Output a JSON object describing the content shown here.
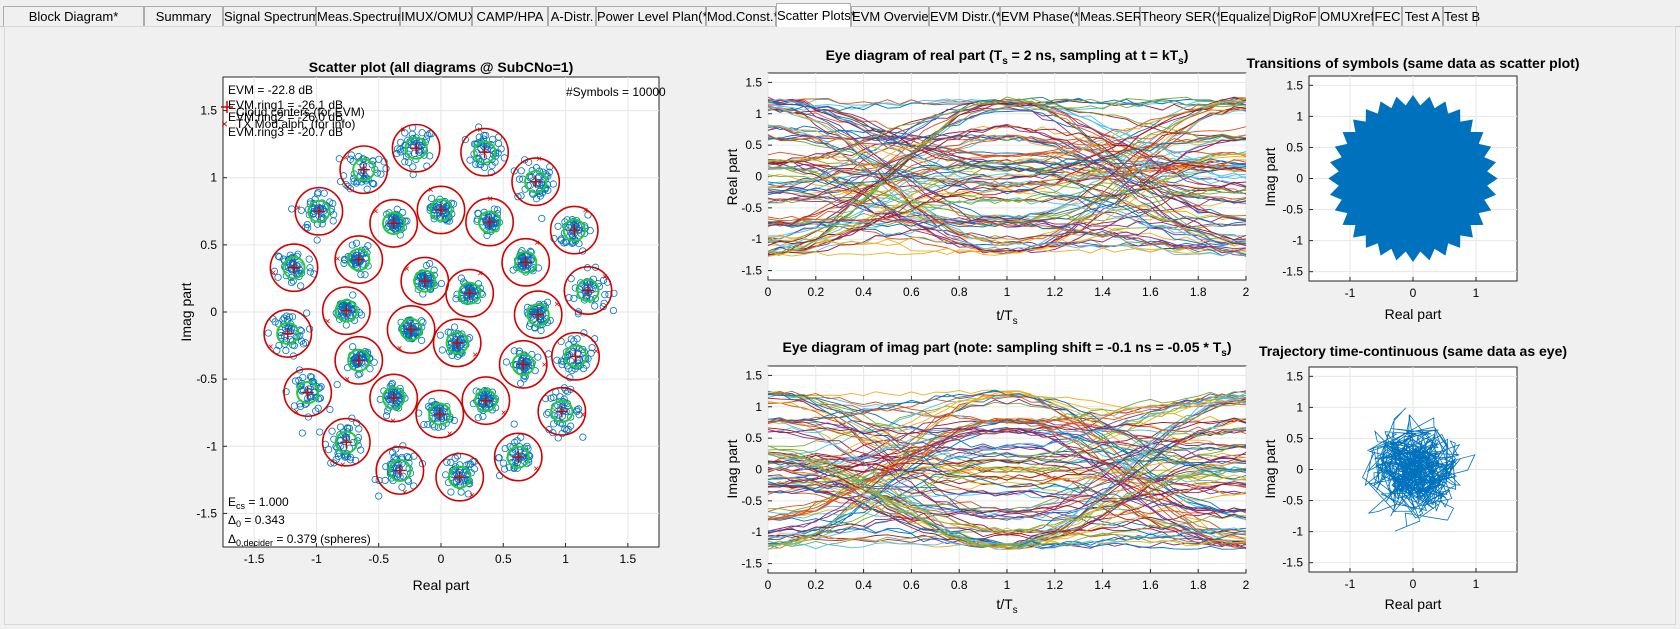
{
  "tabs": [
    {
      "label": "Block Diagram*"
    },
    {
      "label": "Summary"
    },
    {
      "label": "Signal Spectrum"
    },
    {
      "label": "Meas.Spectrum"
    },
    {
      "label": "IMUX/OMUX"
    },
    {
      "label": "CAMP/HPA"
    },
    {
      "label": "A-Distr."
    },
    {
      "label": "Power Level Plan(*)"
    },
    {
      "label": "Mod.Const.*"
    },
    {
      "label": "Scatter Plots*"
    },
    {
      "label": "EVM Overview"
    },
    {
      "label": "EVM Distr.(*)"
    },
    {
      "label": "EVM Phase(*)"
    },
    {
      "label": "Meas.SER*"
    },
    {
      "label": "Theory SER(*)"
    },
    {
      "label": "Equalizer"
    },
    {
      "label": "DigRoF"
    },
    {
      "label": "OMUXrefl"
    },
    {
      "label": "FEC"
    },
    {
      "label": "Test A"
    },
    {
      "label": "Test B"
    }
  ],
  "active_tab": "Scatter Plots*",
  "scatter": {
    "title": "Scatter plot (all diagrams @ SubCNo=1)",
    "xlabel": "Real part",
    "ylabel": "Imag part",
    "evm_lines": [
      "EVM = -22.8 dB",
      "EVM.ring1 = -26.1 dB",
      "EVM.ring2 = -26.0 dB",
      "EVM.ring3 = -20.7 dB"
    ],
    "legend": [
      "Cloud centers (for EVM)",
      "TX Mod.alph. (for info)"
    ],
    "symbols": "#Symbols = 10000",
    "ecs_label": "E",
    "ecs_sub": "cs",
    "ecs_value": " = 1.000",
    "delta0_label": "Δ",
    "delta0_sub": "0",
    "delta0_value": "   = 0.343",
    "delta0dec_label": "Δ",
    "delta0dec_sub": "0,decider",
    "delta0dec_value": " = 0.379 (spheres)",
    "xticks": [
      "-1.5",
      "-1",
      "-0.5",
      "0",
      "0.5",
      "1",
      "1.5"
    ],
    "yticks": [
      "1.5",
      "1",
      "0.5",
      "0",
      "-0.5",
      "-1",
      "-1.5"
    ]
  },
  "eye_real": {
    "title_a": "Eye diagram of real part   (T",
    "title_a_sub": "s",
    "title_b": " = 2 ns, sampling at t = kT",
    "title_b_sub": "s",
    "title_c": ")",
    "ylabel": "Real part",
    "xlabel": "t/T",
    "xlabel_sub": "s",
    "xticks": [
      "0",
      "0.2",
      "0.4",
      "0.6",
      "0.8",
      "1",
      "1.2",
      "1.4",
      "1.6",
      "1.8",
      "2"
    ],
    "yticks": [
      "1.5",
      "1",
      "0.5",
      "0",
      "-0.5",
      "-1",
      "-1.5"
    ]
  },
  "eye_imag": {
    "title_a": "Eye diagram of imag part   (note: sampling shift = -0.1 ns = -0.05 * T",
    "title_a_sub": "s",
    "title_c": ")",
    "ylabel": "Imag part",
    "xlabel": "t/T",
    "xlabel_sub": "s",
    "xticks": [
      "0",
      "0.2",
      "0.4",
      "0.6",
      "0.8",
      "1",
      "1.2",
      "1.4",
      "1.6",
      "1.8",
      "2"
    ],
    "yticks": [
      "1.5",
      "1",
      "0.5",
      "0",
      "-0.5",
      "-1",
      "-1.5"
    ]
  },
  "transitions": {
    "title": "Transitions of symbols  (same data as scatter plot)",
    "xlabel": "Real part",
    "ylabel": "Imag part",
    "xticks": [
      "-1",
      "0",
      "1"
    ],
    "yticks": [
      "1.5",
      "1",
      "0.5",
      "0",
      "-0.5",
      "-1",
      "-1.5"
    ]
  },
  "trajectory": {
    "title": "Trajectory time-continuous  (same data as eye)",
    "xlabel": "Real part",
    "ylabel": "Imag part",
    "xticks": [
      "-1",
      "0",
      "1"
    ],
    "yticks": [
      "1.5",
      "1",
      "0.5",
      "0",
      "-0.5",
      "-1",
      "-1.5"
    ]
  },
  "chart_data": [
    {
      "type": "scatter",
      "title": "Scatter plot (all diagrams @ SubCNo=1)",
      "xlabel": "Real part",
      "ylabel": "Imag part",
      "xlim": [
        -1.75,
        1.75
      ],
      "ylim": [
        -1.75,
        1.75
      ],
      "grid": true,
      "series": [
        {
          "name": "Cloud centers (for EVM)",
          "points": [
            [
              -0.2,
              1.22
            ],
            [
              0.35,
              1.19
            ],
            [
              0.76,
              0.97
            ],
            [
              1.07,
              0.61
            ],
            [
              1.18,
              0.16
            ],
            [
              1.08,
              -0.33
            ],
            [
              0.97,
              -0.74
            ],
            [
              0.62,
              -1.08
            ],
            [
              0.15,
              -1.23
            ],
            [
              -0.33,
              -1.18
            ],
            [
              -0.76,
              -0.97
            ],
            [
              -1.07,
              -0.6
            ],
            [
              -1.23,
              -0.16
            ],
            [
              -1.18,
              0.33
            ],
            [
              -0.98,
              0.75
            ],
            [
              -0.62,
              1.06
            ],
            [
              -0.38,
              0.66
            ],
            [
              0.0,
              0.76
            ],
            [
              0.39,
              0.67
            ],
            [
              0.68,
              0.37
            ],
            [
              0.78,
              -0.02
            ],
            [
              0.66,
              -0.39
            ],
            [
              0.36,
              -0.66
            ],
            [
              -0.01,
              -0.76
            ],
            [
              -0.38,
              -0.64
            ],
            [
              -0.66,
              -0.36
            ],
            [
              -0.76,
              0.01
            ],
            [
              -0.66,
              0.39
            ],
            [
              -0.13,
              0.23
            ],
            [
              0.23,
              0.14
            ],
            [
              0.13,
              -0.23
            ],
            [
              -0.24,
              -0.13
            ]
          ]
        }
      ]
    },
    {
      "type": "line",
      "title": "Eye diagram of real part (Ts = 2 ns, sampling at t = kTs)",
      "xlabel": "t/Ts",
      "ylabel": "Real part",
      "xlim": [
        0,
        2
      ],
      "ylim": [
        -1.65,
        1.65
      ]
    },
    {
      "type": "line",
      "title": "Eye diagram of imag part (note: sampling shift = -0.1 ns = -0.05 * Ts)",
      "xlabel": "t/Ts",
      "ylabel": "Imag part",
      "xlim": [
        0,
        2
      ],
      "ylim": [
        -1.65,
        1.65
      ]
    },
    {
      "type": "line",
      "title": "Transitions of symbols (same data as scatter plot)",
      "xlabel": "Real part",
      "ylabel": "Imag part",
      "xlim": [
        -1.65,
        1.65
      ],
      "ylim": [
        -1.65,
        1.65
      ]
    },
    {
      "type": "line",
      "title": "Trajectory time-continuous (same data as eye)",
      "xlabel": "Real part",
      "ylabel": "Imag part",
      "xlim": [
        -1.65,
        1.65
      ],
      "ylim": [
        -1.65,
        1.65
      ]
    }
  ],
  "colors": {
    "cloud": "#0072BD",
    "ring_red": "#D40000",
    "ring_green": "#22CC33",
    "tx_marker": "#D40000"
  }
}
